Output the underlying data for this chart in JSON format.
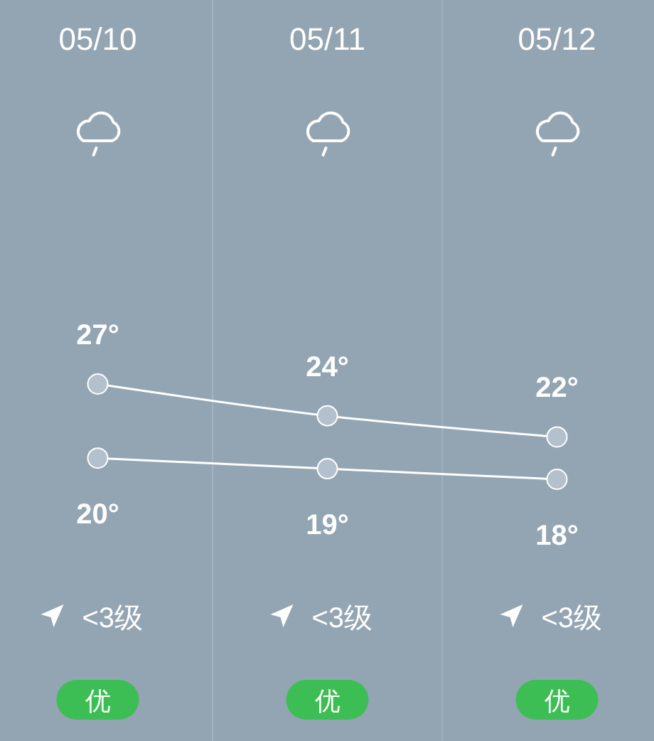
{
  "chart_data": {
    "type": "line",
    "categories": [
      "05/10",
      "05/11",
      "05/12"
    ],
    "series": [
      {
        "color": "#ffffff",
        "values": [
          27,
          24,
          22
        ],
        "value_labels": [
          "27°",
          "24°",
          "22°"
        ]
      },
      {
        "color": "#ffffff",
        "values": [
          20,
          19,
          18
        ],
        "value_labels": [
          "20°",
          "19°",
          "18°"
        ]
      }
    ],
    "marker": "circle",
    "grid": "x",
    "annotations": [
      "<3级",
      "<3级",
      "<3级",
      "优",
      "优",
      "优"
    ]
  }
}
